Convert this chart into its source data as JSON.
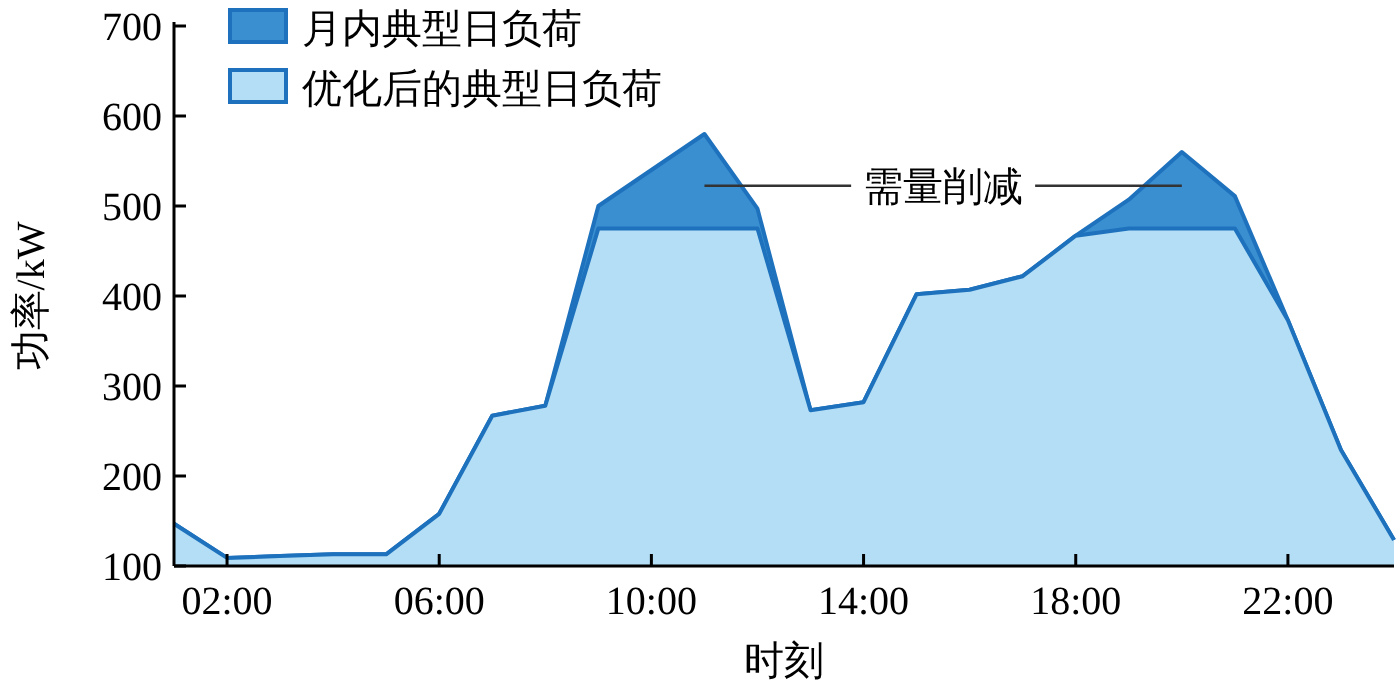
{
  "chart_data": {
    "type": "area",
    "xlabel": "时刻",
    "ylabel": "功率/kW",
    "x": [
      1,
      2,
      3,
      4,
      5,
      6,
      7,
      8,
      9,
      10,
      11,
      12,
      13,
      14,
      15,
      16,
      17,
      18,
      19,
      20,
      21,
      22,
      23,
      24
    ],
    "series": [
      {
        "name": "月内典型日负荷",
        "color": "#3a8fd0",
        "values": [
          147,
          109,
          111,
          113,
          113,
          158,
          267,
          278,
          500,
          540,
          580,
          497,
          273,
          282,
          402,
          407,
          422,
          467,
          507,
          560,
          511,
          373,
          229,
          129
        ]
      },
      {
        "name": "优化后的典型日负荷",
        "color": "#b3def5",
        "values": [
          147,
          109,
          111,
          113,
          113,
          158,
          267,
          278,
          475,
          475,
          475,
          475,
          273,
          282,
          402,
          407,
          422,
          467,
          475,
          475,
          475,
          373,
          229,
          129
        ]
      }
    ],
    "xlim": [
      1,
      24
    ],
    "xticks": [
      {
        "value": 2,
        "label": "02:00"
      },
      {
        "value": 6,
        "label": "06:00"
      },
      {
        "value": 10,
        "label": "10:00"
      },
      {
        "value": 14,
        "label": "14:00"
      },
      {
        "value": 18,
        "label": "18:00"
      },
      {
        "value": 22,
        "label": "22:00"
      }
    ],
    "ylim": [
      100,
      700
    ],
    "yticks": [
      100,
      200,
      300,
      400,
      500,
      600,
      700
    ],
    "annotations": [
      "需量削减"
    ],
    "legend": "top left",
    "grid": false
  }
}
